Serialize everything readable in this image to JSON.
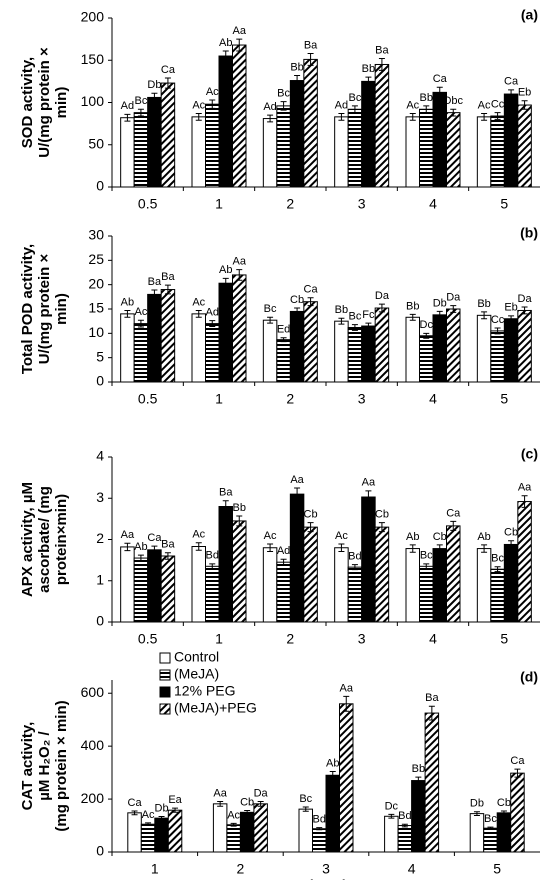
{
  "chart_data": [
    {
      "type": "bar",
      "panel": "(a)",
      "y_label": [
        "SOD activity,",
        "U/(mg protein ×",
        "min)"
      ],
      "categories": [
        "0.5",
        "1",
        "2",
        "3",
        "4",
        "5"
      ],
      "ylim": [
        0,
        200
      ],
      "yticks": [
        0,
        50,
        100,
        150,
        200
      ],
      "series": [
        {
          "pattern": "white",
          "values": [
            82,
            83,
            81,
            83,
            83,
            83
          ],
          "errors": [
            4,
            4,
            4,
            4,
            4,
            4
          ],
          "letters": [
            "Ad",
            "Ac",
            "Ad",
            "Ad",
            "Ac",
            "Ac"
          ]
        },
        {
          "pattern": "hlines",
          "values": [
            88,
            98,
            96,
            92,
            92,
            84
          ],
          "errors": [
            4,
            5,
            5,
            4,
            4,
            4
          ],
          "letters": [
            "Bc",
            "Ac",
            "Bc",
            "Bc",
            "Bb",
            "Cc"
          ]
        },
        {
          "pattern": "black",
          "values": [
            106,
            155,
            126,
            125,
            112,
            110
          ],
          "errors": [
            5,
            6,
            6,
            5,
            6,
            5
          ],
          "letters": [
            "Db",
            "Ab",
            "Bb",
            "Bb",
            "Ca",
            "Ca"
          ]
        },
        {
          "pattern": "diag",
          "values": [
            123,
            168,
            151,
            145,
            88,
            97
          ],
          "errors": [
            6,
            7,
            7,
            7,
            4,
            5
          ],
          "letters": [
            "Ca",
            "Aa",
            "Ba",
            "Ba",
            "Dbc",
            "Eb"
          ]
        }
      ]
    },
    {
      "type": "bar",
      "panel": "(b)",
      "y_label": [
        "Total POD activity,",
        "U/(mg protein ×",
        "min)"
      ],
      "categories": [
        "0.5",
        "1",
        "2",
        "3",
        "4",
        "5"
      ],
      "ylim": [
        0,
        30
      ],
      "yticks": [
        0,
        5,
        10,
        15,
        20,
        25,
        30
      ],
      "series": [
        {
          "pattern": "white",
          "values": [
            14,
            14,
            12.7,
            12.5,
            13.3,
            13.7
          ],
          "errors": [
            0.7,
            0.7,
            0.6,
            0.6,
            0.6,
            0.7
          ],
          "letters": [
            "Ab",
            "Ac",
            "Bc",
            "Bb",
            "Bb",
            "Bb"
          ]
        },
        {
          "pattern": "hlines",
          "values": [
            12,
            12,
            8.7,
            11.2,
            9.5,
            10.5
          ],
          "errors": [
            0.7,
            0.6,
            0.4,
            0.6,
            0.5,
            0.6
          ],
          "letters": [
            "Ac",
            "Ad",
            "Ed",
            "Bc",
            "Dc",
            "Cc"
          ]
        },
        {
          "pattern": "black",
          "values": [
            18,
            20.3,
            14.5,
            11.5,
            13.8,
            13
          ],
          "errors": [
            0.9,
            1,
            0.7,
            0.6,
            0.7,
            0.6
          ],
          "letters": [
            "Ba",
            "Ab",
            "Cb",
            "Fc",
            "Db",
            "Eb"
          ]
        },
        {
          "pattern": "diag",
          "values": [
            19,
            22,
            16.5,
            15.2,
            15,
            14.7
          ],
          "errors": [
            0.9,
            1.1,
            0.8,
            0.8,
            0.7,
            0.7
          ],
          "letters": [
            "Ba",
            "Aa",
            "Ca",
            "Da",
            "Da",
            "Da"
          ]
        }
      ]
    },
    {
      "type": "bar",
      "panel": "(c)",
      "y_label": [
        "APX activity, µM",
        "ascorbate/ (mg",
        "protein×min)"
      ],
      "categories": [
        "0.5",
        "1",
        "2",
        "3",
        "4",
        "5"
      ],
      "ylim": [
        0,
        4
      ],
      "yticks": [
        0,
        1,
        2,
        3,
        4
      ],
      "series": [
        {
          "pattern": "white",
          "values": [
            1.82,
            1.83,
            1.8,
            1.8,
            1.78,
            1.78
          ],
          "errors": [
            0.09,
            0.09,
            0.09,
            0.09,
            0.09,
            0.09
          ],
          "letters": [
            "Aa",
            "Ac",
            "Ac",
            "Ac",
            "Ab",
            "Ab"
          ]
        },
        {
          "pattern": "hlines",
          "values": [
            1.55,
            1.35,
            1.45,
            1.33,
            1.35,
            1.28
          ],
          "errors": [
            0.07,
            0.06,
            0.07,
            0.06,
            0.06,
            0.06
          ],
          "letters": [
            "Ab",
            "Bd",
            "Ad",
            "Bd",
            "Bc",
            "Bc"
          ]
        },
        {
          "pattern": "black",
          "values": [
            1.75,
            2.8,
            3.1,
            3.03,
            1.78,
            1.88
          ],
          "errors": [
            0.09,
            0.14,
            0.15,
            0.15,
            0.09,
            0.09
          ],
          "letters": [
            "Ca",
            "Ba",
            "Aa",
            "Aa",
            "Cb",
            "Cb"
          ]
        },
        {
          "pattern": "diag",
          "values": [
            1.6,
            2.45,
            2.3,
            2.3,
            2.33,
            2.92
          ],
          "errors": [
            0.08,
            0.12,
            0.11,
            0.11,
            0.11,
            0.14
          ],
          "letters": [
            "Ba",
            "Bb",
            "Cb",
            "Cb",
            "Ca",
            "Aa"
          ]
        }
      ]
    },
    {
      "type": "bar",
      "panel": "(d)",
      "y_label": [
        "CAT activity,",
        "µM H₂O₂ /",
        "(mg protein × min)"
      ],
      "x_label": "Time, h",
      "categories": [
        "1",
        "2",
        "3",
        "4",
        "5"
      ],
      "ylim": [
        0,
        650
      ],
      "yticks": [
        0,
        200,
        400,
        600
      ],
      "series": [
        {
          "name": "Control",
          "pattern": "white",
          "values": [
            148,
            182,
            162,
            135,
            145
          ],
          "errors": [
            7,
            9,
            8,
            7,
            7
          ],
          "letters": [
            "Ca",
            "Aa",
            "Bc",
            "Dc",
            "Db"
          ]
        },
        {
          "name": "(MeJA)",
          "pattern": "hlines",
          "values": [
            105,
            103,
            88,
            100,
            90
          ],
          "errors": [
            5,
            5,
            4,
            5,
            4
          ],
          "letters": [
            "Ac",
            "Ac",
            "Bd",
            "Bd",
            "Bc"
          ]
        },
        {
          "name": "12% PEG",
          "pattern": "black",
          "values": [
            128,
            150,
            290,
            270,
            148
          ],
          "errors": [
            6,
            7,
            14,
            13,
            7
          ],
          "letters": [
            "Db",
            "Cb",
            "Ab",
            "Bb",
            "Cb"
          ]
        },
        {
          "name": "(MeJA)+PEG",
          "pattern": "diag",
          "values": [
            158,
            182,
            560,
            525,
            298
          ],
          "errors": [
            8,
            9,
            28,
            26,
            15
          ],
          "letters": [
            "Ea",
            "Da",
            "Aa",
            "Ba",
            "Ca"
          ]
        }
      ]
    }
  ]
}
